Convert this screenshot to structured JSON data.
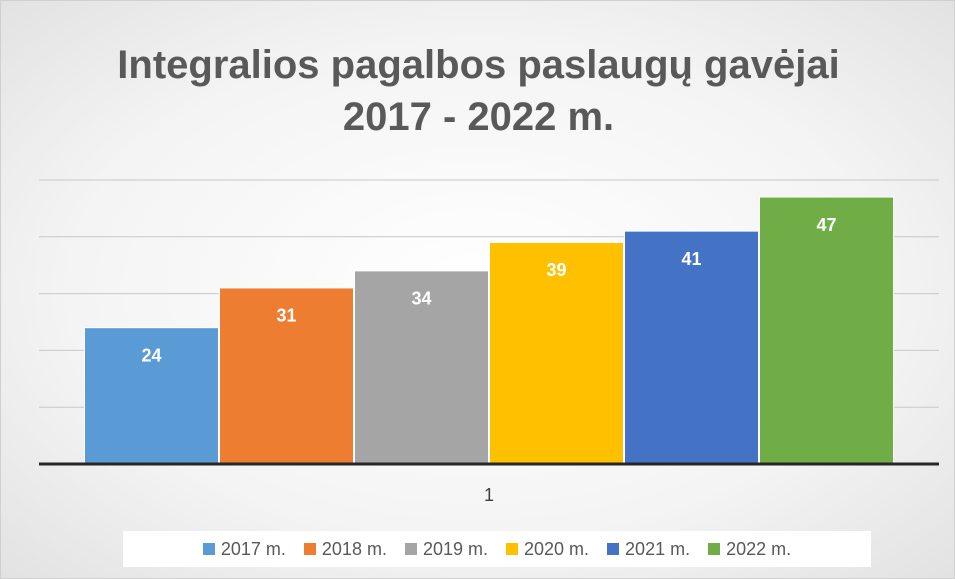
{
  "chart_data": {
    "type": "bar",
    "title": "Integralios pagalbos paslaugų gavėjai 2017 - 2022 m.",
    "categories": [
      "1"
    ],
    "series": [
      {
        "name": "2017 m.",
        "color": "#5b9bd5",
        "values": [
          24
        ]
      },
      {
        "name": "2018 m.",
        "color": "#ed7d31",
        "values": [
          31
        ]
      },
      {
        "name": "2019 m.",
        "color": "#a5a5a5",
        "values": [
          34
        ]
      },
      {
        "name": "2020 m.",
        "color": "#ffc000",
        "values": [
          39
        ]
      },
      {
        "name": "2021 m.",
        "color": "#4472c4",
        "values": [
          41
        ]
      },
      {
        "name": "2022 m.",
        "color": "#70ad47",
        "values": [
          47
        ]
      }
    ],
    "ylim": [
      0,
      50
    ],
    "yticks": [
      0,
      10,
      20,
      30,
      40,
      50
    ],
    "grid": true,
    "legend": "bottom"
  }
}
